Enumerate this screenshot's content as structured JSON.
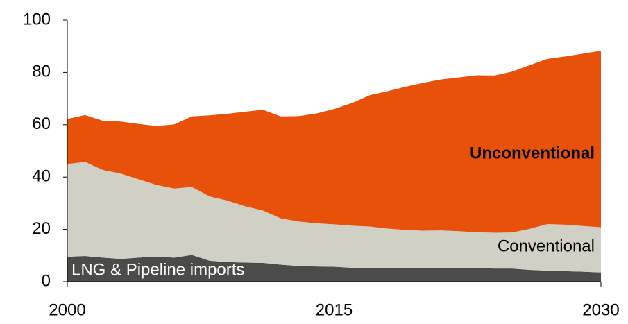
{
  "chart_data": {
    "type": "stacked-area",
    "x": [
      2000,
      2001,
      2002,
      2003,
      2004,
      2005,
      2006,
      2007,
      2008,
      2009,
      2010,
      2011,
      2012,
      2013,
      2014,
      2015,
      2016,
      2017,
      2018,
      2019,
      2020,
      2021,
      2022,
      2023,
      2024,
      2025,
      2026,
      2027,
      2028,
      2029,
      2030
    ],
    "series": [
      {
        "name": "LNG & Pipeline imports",
        "color": "#4b4b49",
        "values": [
          9.5,
          9.8,
          9.2,
          8.7,
          9.2,
          9.6,
          9.2,
          10.2,
          8,
          7.5,
          7.3,
          7.2,
          6.5,
          6,
          5.8,
          5.7,
          5.3,
          5.2,
          5.2,
          5.2,
          5.2,
          5.3,
          5.3,
          5.2,
          5,
          5,
          4.5,
          4.2,
          4,
          3.8,
          3.5
        ]
      },
      {
        "name": "Conventional",
        "color": "#d1d0c5",
        "values": [
          35.5,
          36,
          33.5,
          32.6,
          30,
          27.4,
          26.4,
          26,
          24.6,
          23.5,
          21.5,
          20,
          17.7,
          17,
          16.5,
          16.2,
          16.1,
          15.9,
          15.1,
          14.6,
          14.3,
          14.3,
          14,
          13.7,
          13.7,
          13.8,
          15.7,
          17.8,
          17.8,
          17.5,
          17.3
        ]
      },
      {
        "name": "Unconventional",
        "color": "#e8510a",
        "values": [
          17.2,
          17.9,
          18.8,
          19.9,
          21.1,
          22.5,
          24.5,
          27,
          31,
          33.2,
          36.2,
          38.5,
          39,
          40.3,
          42,
          44.1,
          46.9,
          50.2,
          52.5,
          54.7,
          56.5,
          57.7,
          58.8,
          60,
          60.1,
          61.5,
          62.6,
          63.2,
          64.3,
          65.9,
          67.5
        ]
      }
    ],
    "xlim": [
      2000,
      2030
    ],
    "xticks": [
      2000,
      2015,
      2030
    ],
    "ylim": [
      0,
      100
    ],
    "yticks": [
      0,
      20,
      40,
      60,
      80,
      100
    ]
  }
}
